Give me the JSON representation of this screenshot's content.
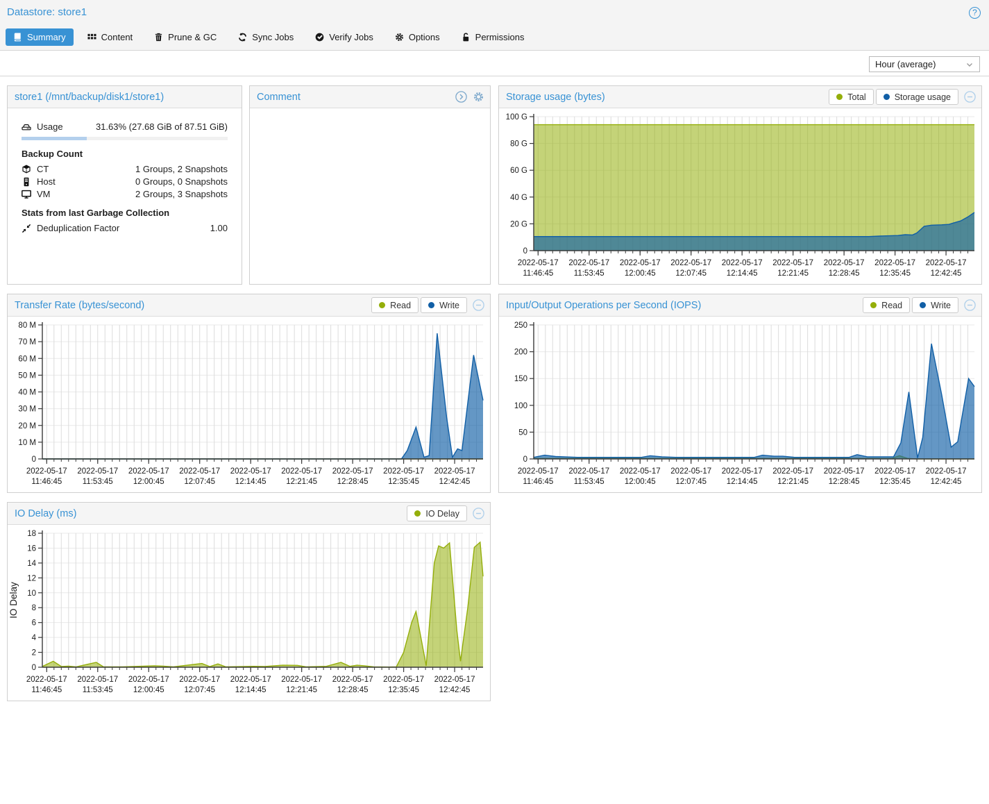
{
  "colors": {
    "accent": "#3892d4",
    "series_green": "#94ae0a",
    "series_blue": "#115fa6",
    "usage_bar": "#b4d0ed"
  },
  "header": {
    "title": "Datastore: store1",
    "help_label": "?",
    "help_icon": "question-circle-icon"
  },
  "tabs": [
    {
      "label": "Summary",
      "icon": "book-icon",
      "active": true
    },
    {
      "label": "Content",
      "icon": "grid-icon",
      "active": false
    },
    {
      "label": "Prune & GC",
      "icon": "trash-icon",
      "active": false
    },
    {
      "label": "Sync Jobs",
      "icon": "sync-icon",
      "active": false
    },
    {
      "label": "Verify Jobs",
      "icon": "check-circle-icon",
      "active": false
    },
    {
      "label": "Options",
      "icon": "gear-icon",
      "active": false
    },
    {
      "label": "Permissions",
      "icon": "unlock-icon",
      "active": false
    }
  ],
  "toolbar": {
    "timeframe_selected": "Hour (average)"
  },
  "panels": {
    "datastore": {
      "title": "store1 (/mnt/backup/disk1/store1)",
      "usage": {
        "icon": "hdd-icon",
        "label": "Usage",
        "value": "31.63% (27.68 GiB of 87.51 GiB)",
        "percent": 31.63
      },
      "backup_count_heading": "Backup Count",
      "backup_counts": [
        {
          "icon": "cube-icon",
          "label": "CT",
          "value": "1 Groups, 2 Snapshots"
        },
        {
          "icon": "server-tower-icon",
          "label": "Host",
          "value": "0 Groups, 0 Snapshots"
        },
        {
          "icon": "desktop-icon",
          "label": "VM",
          "value": "2 Groups, 3 Snapshots"
        }
      ],
      "gc_heading": "Stats from last Garbage Collection",
      "gc_stats": [
        {
          "icon": "compress-icon",
          "label": "Deduplication Factor",
          "value": "1.00"
        }
      ]
    },
    "comment": {
      "title": "Comment",
      "tools": [
        "expand-icon",
        "gear-icon"
      ]
    }
  },
  "chart_data": [
    {
      "type": "area",
      "title": "Storage usage (bytes)",
      "x_max": 60.5,
      "ymax": 100,
      "grid": true,
      "legend_position": "header-right",
      "y_ticks": [
        {
          "v": 0,
          "label": "0"
        },
        {
          "v": 20,
          "label": "20 G"
        },
        {
          "v": 40,
          "label": "40 G"
        },
        {
          "v": 60,
          "label": "60 G"
        },
        {
          "v": 80,
          "label": "80 G"
        },
        {
          "v": 100,
          "label": "100 G"
        }
      ],
      "x_ticks": [
        {
          "t": 0.6,
          "date": "2022-05-17",
          "time": "11:46:45"
        },
        {
          "t": 7.6,
          "date": "2022-05-17",
          "time": "11:53:45"
        },
        {
          "t": 14.6,
          "date": "2022-05-17",
          "time": "12:00:45"
        },
        {
          "t": 21.6,
          "date": "2022-05-17",
          "time": "12:07:45"
        },
        {
          "t": 28.6,
          "date": "2022-05-17",
          "time": "12:14:45"
        },
        {
          "t": 35.6,
          "date": "2022-05-17",
          "time": "12:21:45"
        },
        {
          "t": 42.6,
          "date": "2022-05-17",
          "time": "12:28:45"
        },
        {
          "t": 49.6,
          "date": "2022-05-17",
          "time": "12:35:45"
        },
        {
          "t": 56.6,
          "date": "2022-05-17",
          "time": "12:42:45"
        }
      ],
      "series": [
        {
          "name": "Total",
          "color": "#94ae0a",
          "fill_opacity": 0.55,
          "points": [
            [
              0,
              94
            ],
            [
              60.5,
              94
            ]
          ]
        },
        {
          "name": "Storage usage",
          "color": "#115fa6",
          "fill_opacity": 0.65,
          "points": [
            [
              0,
              10.5
            ],
            [
              46,
              10.5
            ],
            [
              48,
              11
            ],
            [
              50,
              11.3
            ],
            [
              51,
              11.9
            ],
            [
              52,
              11.7
            ],
            [
              52.6,
              13.2
            ],
            [
              53.6,
              18.2
            ],
            [
              54.6,
              19
            ],
            [
              56,
              19.3
            ],
            [
              57,
              19.6
            ],
            [
              57.6,
              20.6
            ],
            [
              58.6,
              22.2
            ],
            [
              59.6,
              25.2
            ],
            [
              60.5,
              28.5
            ]
          ]
        }
      ]
    },
    {
      "type": "area",
      "title": "Transfer Rate (bytes/second)",
      "x_max": 60.5,
      "ymax": 80,
      "grid": true,
      "legend_position": "header-right",
      "y_ticks": [
        {
          "v": 0,
          "label": "0"
        },
        {
          "v": 10,
          "label": "10 M"
        },
        {
          "v": 20,
          "label": "20 M"
        },
        {
          "v": 30,
          "label": "30 M"
        },
        {
          "v": 40,
          "label": "40 M"
        },
        {
          "v": 50,
          "label": "50 M"
        },
        {
          "v": 60,
          "label": "60 M"
        },
        {
          "v": 70,
          "label": "70 M"
        },
        {
          "v": 80,
          "label": "80 M"
        }
      ],
      "x_ticks": [
        {
          "t": 0.6,
          "date": "2022-05-17",
          "time": "11:46:45"
        },
        {
          "t": 7.6,
          "date": "2022-05-17",
          "time": "11:53:45"
        },
        {
          "t": 14.6,
          "date": "2022-05-17",
          "time": "12:00:45"
        },
        {
          "t": 21.6,
          "date": "2022-05-17",
          "time": "12:07:45"
        },
        {
          "t": 28.6,
          "date": "2022-05-17",
          "time": "12:14:45"
        },
        {
          "t": 35.6,
          "date": "2022-05-17",
          "time": "12:21:45"
        },
        {
          "t": 42.6,
          "date": "2022-05-17",
          "time": "12:28:45"
        },
        {
          "t": 49.6,
          "date": "2022-05-17",
          "time": "12:35:45"
        },
        {
          "t": 56.6,
          "date": "2022-05-17",
          "time": "12:42:45"
        }
      ],
      "series": [
        {
          "name": "Read",
          "color": "#94ae0a",
          "fill_opacity": 0.55,
          "points": [
            [
              0,
              0
            ],
            [
              60.5,
              0
            ]
          ]
        },
        {
          "name": "Write",
          "color": "#115fa6",
          "fill_opacity": 0.65,
          "points": [
            [
              0,
              0
            ],
            [
              49.3,
              0
            ],
            [
              50.1,
              5
            ],
            [
              51.3,
              19
            ],
            [
              52.4,
              1
            ],
            [
              53.1,
              2
            ],
            [
              54.2,
              75
            ],
            [
              55.5,
              25
            ],
            [
              56.3,
              1
            ],
            [
              57,
              6
            ],
            [
              57.6,
              5
            ],
            [
              59.2,
              62
            ],
            [
              60.5,
              35
            ]
          ]
        }
      ]
    },
    {
      "type": "area",
      "title": "Input/Output Operations per Second (IOPS)",
      "x_max": 60.5,
      "ymax": 250,
      "grid": true,
      "legend_position": "header-right",
      "y_ticks": [
        {
          "v": 0,
          "label": "0"
        },
        {
          "v": 50,
          "label": "50"
        },
        {
          "v": 100,
          "label": "100"
        },
        {
          "v": 150,
          "label": "150"
        },
        {
          "v": 200,
          "label": "200"
        },
        {
          "v": 250,
          "label": "250"
        }
      ],
      "x_ticks": [
        {
          "t": 0.6,
          "date": "2022-05-17",
          "time": "11:46:45"
        },
        {
          "t": 7.6,
          "date": "2022-05-17",
          "time": "11:53:45"
        },
        {
          "t": 14.6,
          "date": "2022-05-17",
          "time": "12:00:45"
        },
        {
          "t": 21.6,
          "date": "2022-05-17",
          "time": "12:07:45"
        },
        {
          "t": 28.6,
          "date": "2022-05-17",
          "time": "12:14:45"
        },
        {
          "t": 35.6,
          "date": "2022-05-17",
          "time": "12:21:45"
        },
        {
          "t": 42.6,
          "date": "2022-05-17",
          "time": "12:28:45"
        },
        {
          "t": 49.6,
          "date": "2022-05-17",
          "time": "12:35:45"
        },
        {
          "t": 56.6,
          "date": "2022-05-17",
          "time": "12:42:45"
        }
      ],
      "series": [
        {
          "name": "Read",
          "color": "#94ae0a",
          "fill_opacity": 0.55,
          "points": [
            [
              0,
              1
            ],
            [
              49.2,
              1
            ],
            [
              50.2,
              6
            ],
            [
              51.3,
              1
            ],
            [
              52.5,
              0
            ],
            [
              60.5,
              0
            ]
          ]
        },
        {
          "name": "Write",
          "color": "#115fa6",
          "fill_opacity": 0.65,
          "points": [
            [
              0,
              3
            ],
            [
              1.5,
              7
            ],
            [
              3,
              4.5
            ],
            [
              4.2,
              4
            ],
            [
              6,
              3
            ],
            [
              14.8,
              3
            ],
            [
              16,
              6
            ],
            [
              17.6,
              4
            ],
            [
              19.5,
              3
            ],
            [
              30.3,
              3
            ],
            [
              31.4,
              7
            ],
            [
              33,
              5
            ],
            [
              34.2,
              5
            ],
            [
              35.8,
              3
            ],
            [
              43.3,
              3
            ],
            [
              44.4,
              8
            ],
            [
              45.8,
              4
            ],
            [
              49.4,
              4
            ],
            [
              50.4,
              30
            ],
            [
              51.5,
              125
            ],
            [
              52.7,
              2
            ],
            [
              53.4,
              40
            ],
            [
              54.6,
              215
            ],
            [
              56,
              120
            ],
            [
              57.3,
              22
            ],
            [
              58.2,
              32
            ],
            [
              59.7,
              150
            ],
            [
              60.5,
              135
            ]
          ]
        }
      ]
    },
    {
      "type": "area",
      "title": "IO Delay (ms)",
      "x_max": 60.5,
      "ymax": 18,
      "grid": true,
      "legend_position": "header-right",
      "y_axis_label": "IO Delay",
      "y_ticks": [
        {
          "v": 0,
          "label": "0"
        },
        {
          "v": 2,
          "label": "2"
        },
        {
          "v": 4,
          "label": "4"
        },
        {
          "v": 6,
          "label": "6"
        },
        {
          "v": 8,
          "label": "8"
        },
        {
          "v": 10,
          "label": "10"
        },
        {
          "v": 12,
          "label": "12"
        },
        {
          "v": 14,
          "label": "14"
        },
        {
          "v": 16,
          "label": "16"
        },
        {
          "v": 18,
          "label": "18"
        }
      ],
      "x_ticks": [
        {
          "t": 0.6,
          "date": "2022-05-17",
          "time": "11:46:45"
        },
        {
          "t": 7.6,
          "date": "2022-05-17",
          "time": "11:53:45"
        },
        {
          "t": 14.6,
          "date": "2022-05-17",
          "time": "12:00:45"
        },
        {
          "t": 21.6,
          "date": "2022-05-17",
          "time": "12:07:45"
        },
        {
          "t": 28.6,
          "date": "2022-05-17",
          "time": "12:14:45"
        },
        {
          "t": 35.6,
          "date": "2022-05-17",
          "time": "12:21:45"
        },
        {
          "t": 42.6,
          "date": "2022-05-17",
          "time": "12:28:45"
        },
        {
          "t": 49.6,
          "date": "2022-05-17",
          "time": "12:35:45"
        },
        {
          "t": 56.6,
          "date": "2022-05-17",
          "time": "12:42:45"
        }
      ],
      "series": [
        {
          "name": "IO Delay",
          "color": "#94ae0a",
          "fill_opacity": 0.55,
          "points": [
            [
              0,
              0.1
            ],
            [
              1.5,
              0.8
            ],
            [
              2.6,
              0.1
            ],
            [
              3.6,
              0.15
            ],
            [
              4.6,
              0.05
            ],
            [
              7.4,
              0.65
            ],
            [
              8.4,
              0.05
            ],
            [
              11,
              0.05
            ],
            [
              15.4,
              0.2
            ],
            [
              16.6,
              0.15
            ],
            [
              18,
              0.05
            ],
            [
              21.9,
              0.5
            ],
            [
              23,
              0.08
            ],
            [
              24.1,
              0.45
            ],
            [
              25.2,
              0.05
            ],
            [
              29,
              0.12
            ],
            [
              30.5,
              0.1
            ],
            [
              33,
              0.27
            ],
            [
              35,
              0.25
            ],
            [
              36.2,
              0.05
            ],
            [
              39,
              0.12
            ],
            [
              41,
              0.65
            ],
            [
              42.2,
              0.12
            ],
            [
              43.2,
              0.27
            ],
            [
              44.2,
              0.2
            ],
            [
              45.5,
              0.05
            ],
            [
              47.6,
              0.03
            ],
            [
              48.6,
              0.05
            ],
            [
              49.6,
              2
            ],
            [
              50.7,
              6
            ],
            [
              51.3,
              7.5
            ],
            [
              52.7,
              0.2
            ],
            [
              53.8,
              14
            ],
            [
              54.4,
              16.3
            ],
            [
              55.1,
              16
            ],
            [
              55.9,
              16.7
            ],
            [
              56.9,
              5
            ],
            [
              57.4,
              0.8
            ],
            [
              58.4,
              8
            ],
            [
              59.3,
              16.1
            ],
            [
              60.1,
              16.8
            ],
            [
              60.5,
              12.2
            ]
          ]
        }
      ]
    }
  ]
}
